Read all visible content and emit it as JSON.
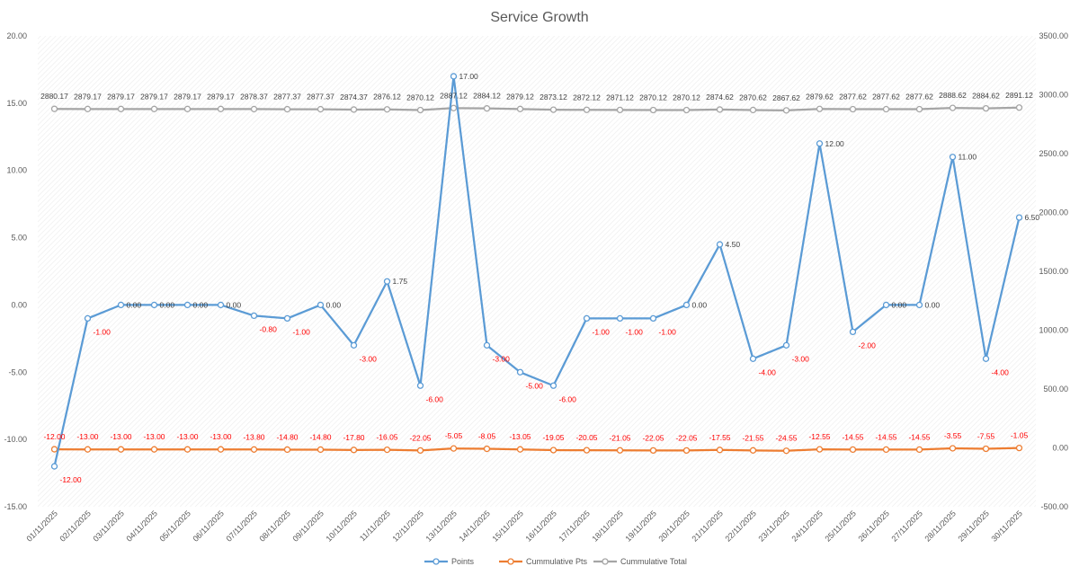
{
  "chart_data": {
    "type": "line",
    "title": "Service Growth",
    "categories": [
      "01/11/2025",
      "02/11/2025",
      "03/11/2025",
      "04/11/2025",
      "05/11/2025",
      "06/11/2025",
      "07/11/2025",
      "08/11/2025",
      "09/11/2025",
      "10/11/2025",
      "11/11/2025",
      "12/11/2025",
      "13/11/2025",
      "14/11/2025",
      "15/11/2025",
      "16/11/2025",
      "17/11/2025",
      "18/11/2025",
      "19/11/2025",
      "20/11/2025",
      "21/11/2025",
      "22/11/2025",
      "23/11/2025",
      "24/11/2025",
      "25/11/2025",
      "26/11/2025",
      "27/11/2025",
      "28/11/2025",
      "29/11/2025",
      "30/11/2025"
    ],
    "left_axis": {
      "ylim": [
        -15,
        20
      ],
      "ticks": [
        "-15.00",
        "-10.00",
        "-5.00",
        "0.00",
        "5.00",
        "10.00",
        "15.00",
        "20.00"
      ],
      "tick_values": [
        -15,
        -10,
        -5,
        0,
        5,
        10,
        15,
        20
      ]
    },
    "right_axis": {
      "ylim": [
        -500,
        3500
      ],
      "ticks": [
        "-500.00",
        "0.00",
        "500.00",
        "1000.00",
        "1500.00",
        "2000.00",
        "2500.00",
        "3000.00",
        "3500.00"
      ],
      "tick_values": [
        -500,
        0,
        500,
        1000,
        1500,
        2000,
        2500,
        3000,
        3500
      ]
    },
    "series": [
      {
        "name": "Points",
        "axis": "left",
        "color": "#5b9bd5",
        "values": [
          -12,
          -1,
          0,
          0,
          0,
          0,
          -0.8,
          -1,
          0,
          -3,
          1.75,
          -6,
          17,
          -3,
          -5,
          -6,
          -1,
          -1,
          -1,
          0,
          4.5,
          -4,
          -3,
          12,
          -2,
          0,
          0,
          11,
          -4,
          6.5
        ],
        "labels": [
          "-12.00",
          "-1.00",
          "0.00",
          "0.00",
          "0.00",
          "0.00",
          "-0.80",
          "-1.00",
          "0.00",
          "-3.00",
          "1.75",
          "-6.00",
          "17.00",
          "-3.00",
          "-5.00",
          "-6.00",
          "-1.00",
          "-1.00",
          "-1.00",
          "0.00",
          "4.50",
          "-4.00",
          "-3.00",
          "12.00",
          "-2.00",
          "0.00",
          "0.00",
          "11.00",
          "-4.00",
          "6.50"
        ]
      },
      {
        "name": "Cummulative Pts",
        "axis": "right",
        "color": "#ed7d31",
        "values": [
          -12,
          -13,
          -13,
          -13,
          -13,
          -13,
          -13.8,
          -14.8,
          -14.8,
          -17.8,
          -16.05,
          -22.05,
          -5.05,
          -8.05,
          -13.05,
          -19.05,
          -20.05,
          -21.05,
          -22.05,
          -22.05,
          -17.55,
          -21.55,
          -24.55,
          -12.55,
          -14.55,
          -14.55,
          -14.55,
          -3.55,
          -7.55,
          -1.05
        ],
        "labels": [
          "-12.00",
          "-13.00",
          "-13.00",
          "-13.00",
          "-13.00",
          "-13.00",
          "-13.80",
          "-14.80",
          "-14.80",
          "-17.80",
          "-16.05",
          "-22.05",
          "-5.05",
          "-8.05",
          "-13.05",
          "-19.05",
          "-20.05",
          "-21.05",
          "-22.05",
          "-22.05",
          "-17.55",
          "-21.55",
          "-24.55",
          "-12.55",
          "-14.55",
          "-14.55",
          "-14.55",
          "-3.55",
          "-7.55",
          "-1.05"
        ]
      },
      {
        "name": "Cummulative Total",
        "axis": "right",
        "color": "#a5a5a5",
        "values": [
          2880.17,
          2879.17,
          2879.17,
          2879.17,
          2879.17,
          2879.17,
          2878.37,
          2877.37,
          2877.37,
          2874.37,
          2876.12,
          2870.12,
          2887.12,
          2884.12,
          2879.12,
          2873.12,
          2872.12,
          2871.12,
          2870.12,
          2870.12,
          2874.62,
          2870.62,
          2867.62,
          2879.62,
          2877.62,
          2877.62,
          2877.62,
          2888.62,
          2884.62,
          2891.12
        ],
        "labels": [
          "2880.17",
          "2879.17",
          "2879.17",
          "2879.17",
          "2879.17",
          "2879.17",
          "2878.37",
          "2877.37",
          "2877.37",
          "2874.37",
          "2876.12",
          "2870.12",
          "2887.12",
          "2884.12",
          "2879.12",
          "2873.12",
          "2872.12",
          "2871.12",
          "2870.12",
          "2870.12",
          "2874.62",
          "2870.62",
          "2867.62",
          "2879.62",
          "2877.62",
          "2877.62",
          "2877.62",
          "2888.62",
          "2884.62",
          "2891.12"
        ]
      }
    ],
    "legend_position": "bottom",
    "grid": false,
    "background_pattern": "light diagonal hatch"
  }
}
